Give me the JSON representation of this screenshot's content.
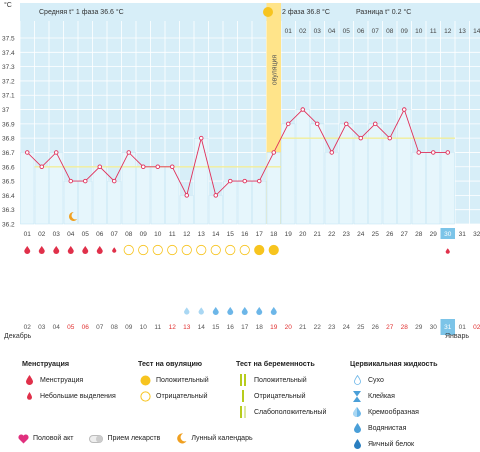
{
  "chart_data": {
    "type": "line",
    "title": "",
    "ylabel": "°C",
    "ylim": [
      36.2,
      37.5
    ],
    "yticks": [
      "37.5",
      "37.4",
      "37.3",
      "37.2",
      "37.1",
      "37",
      "36.9",
      "36.8",
      "36.7",
      "36.6",
      "36.5",
      "36.4",
      "36.3",
      "36.2"
    ],
    "top_days": [
      "01",
      "02",
      "03",
      "04",
      "05",
      "06",
      "07",
      "08",
      "09",
      "10",
      "11",
      "12",
      "13",
      "14"
    ],
    "x_days": [
      "01",
      "02",
      "03",
      "04",
      "05",
      "06",
      "07",
      "08",
      "09",
      "10",
      "11",
      "12",
      "13",
      "14",
      "15",
      "16",
      "17",
      "18",
      "19",
      "20",
      "21",
      "22",
      "23",
      "24",
      "25",
      "26",
      "27",
      "28",
      "29",
      "30",
      "31",
      "32"
    ],
    "series": [
      {
        "values": [
          36.7,
          36.6,
          36.7,
          36.5,
          36.5,
          36.6,
          36.5,
          36.7,
          36.6,
          36.6,
          36.6,
          36.4,
          36.8,
          36.4,
          36.5,
          36.5,
          36.5,
          36.7,
          36.9,
          37.0,
          36.9,
          36.7,
          36.9,
          36.8,
          36.9,
          36.8,
          37.0,
          36.7,
          36.7,
          36.7
        ]
      }
    ],
    "phase1_avg": 36.6,
    "phase2_avg": 36.8,
    "ovulation_day_index": 17,
    "calendar_days": [
      "02",
      "03",
      "04",
      "05",
      "06",
      "07",
      "08",
      "09",
      "10",
      "11",
      "12",
      "13",
      "14",
      "15",
      "16",
      "17",
      "18",
      "19",
      "20",
      "21",
      "22",
      "23",
      "24",
      "25",
      "26",
      "27",
      "28",
      "29",
      "30",
      "31",
      "01",
      "02"
    ],
    "red_days": [
      3,
      4,
      10,
      11,
      17,
      18,
      25,
      26,
      31
    ],
    "highlight_day_index": 29
  },
  "header": {
    "phase1_label": "Средняя t° 1 фаза 36.6 °C",
    "phase2_label": "2 фаза 36.8 °C",
    "diff_label": "Разница t° 0.2 °C",
    "ovulation_label": "овуляция"
  },
  "months": {
    "left": "Декабрь",
    "right": "Январь"
  },
  "legend": {
    "menstruation": {
      "title": "Менструация",
      "items": [
        "Менструация",
        "Небольшие выделения"
      ]
    },
    "ovulation_test": {
      "title": "Тест на овуляцию",
      "items": [
        "Положительный",
        "Отрицательный"
      ]
    },
    "pregnancy_test": {
      "title": "Тест на беременность",
      "items": [
        "Положительный",
        "Отрицательный",
        "Слабоположительный"
      ]
    },
    "cervical": {
      "title": "Цервикальная жидкость",
      "items": [
        "Сухо",
        "Клейкая",
        "Кремообразная",
        "Водянистая",
        "Яичный белок"
      ]
    }
  },
  "bottom": {
    "items": [
      "Половой акт",
      "Прием лекарств",
      "Лунный календарь"
    ]
  },
  "colors": {
    "plot_bg": "#d7eef8",
    "top_band": "#d7eef8",
    "grid": "#ffffff",
    "line": "#e0305a",
    "avg_line": "#f2ee9a",
    "ovulation": "#ffe48a",
    "yellow": "#f7c41f",
    "drop_red": "#e0304a",
    "drop_blue": "#6cb6e8",
    "highlight": "#7cc4e8"
  }
}
